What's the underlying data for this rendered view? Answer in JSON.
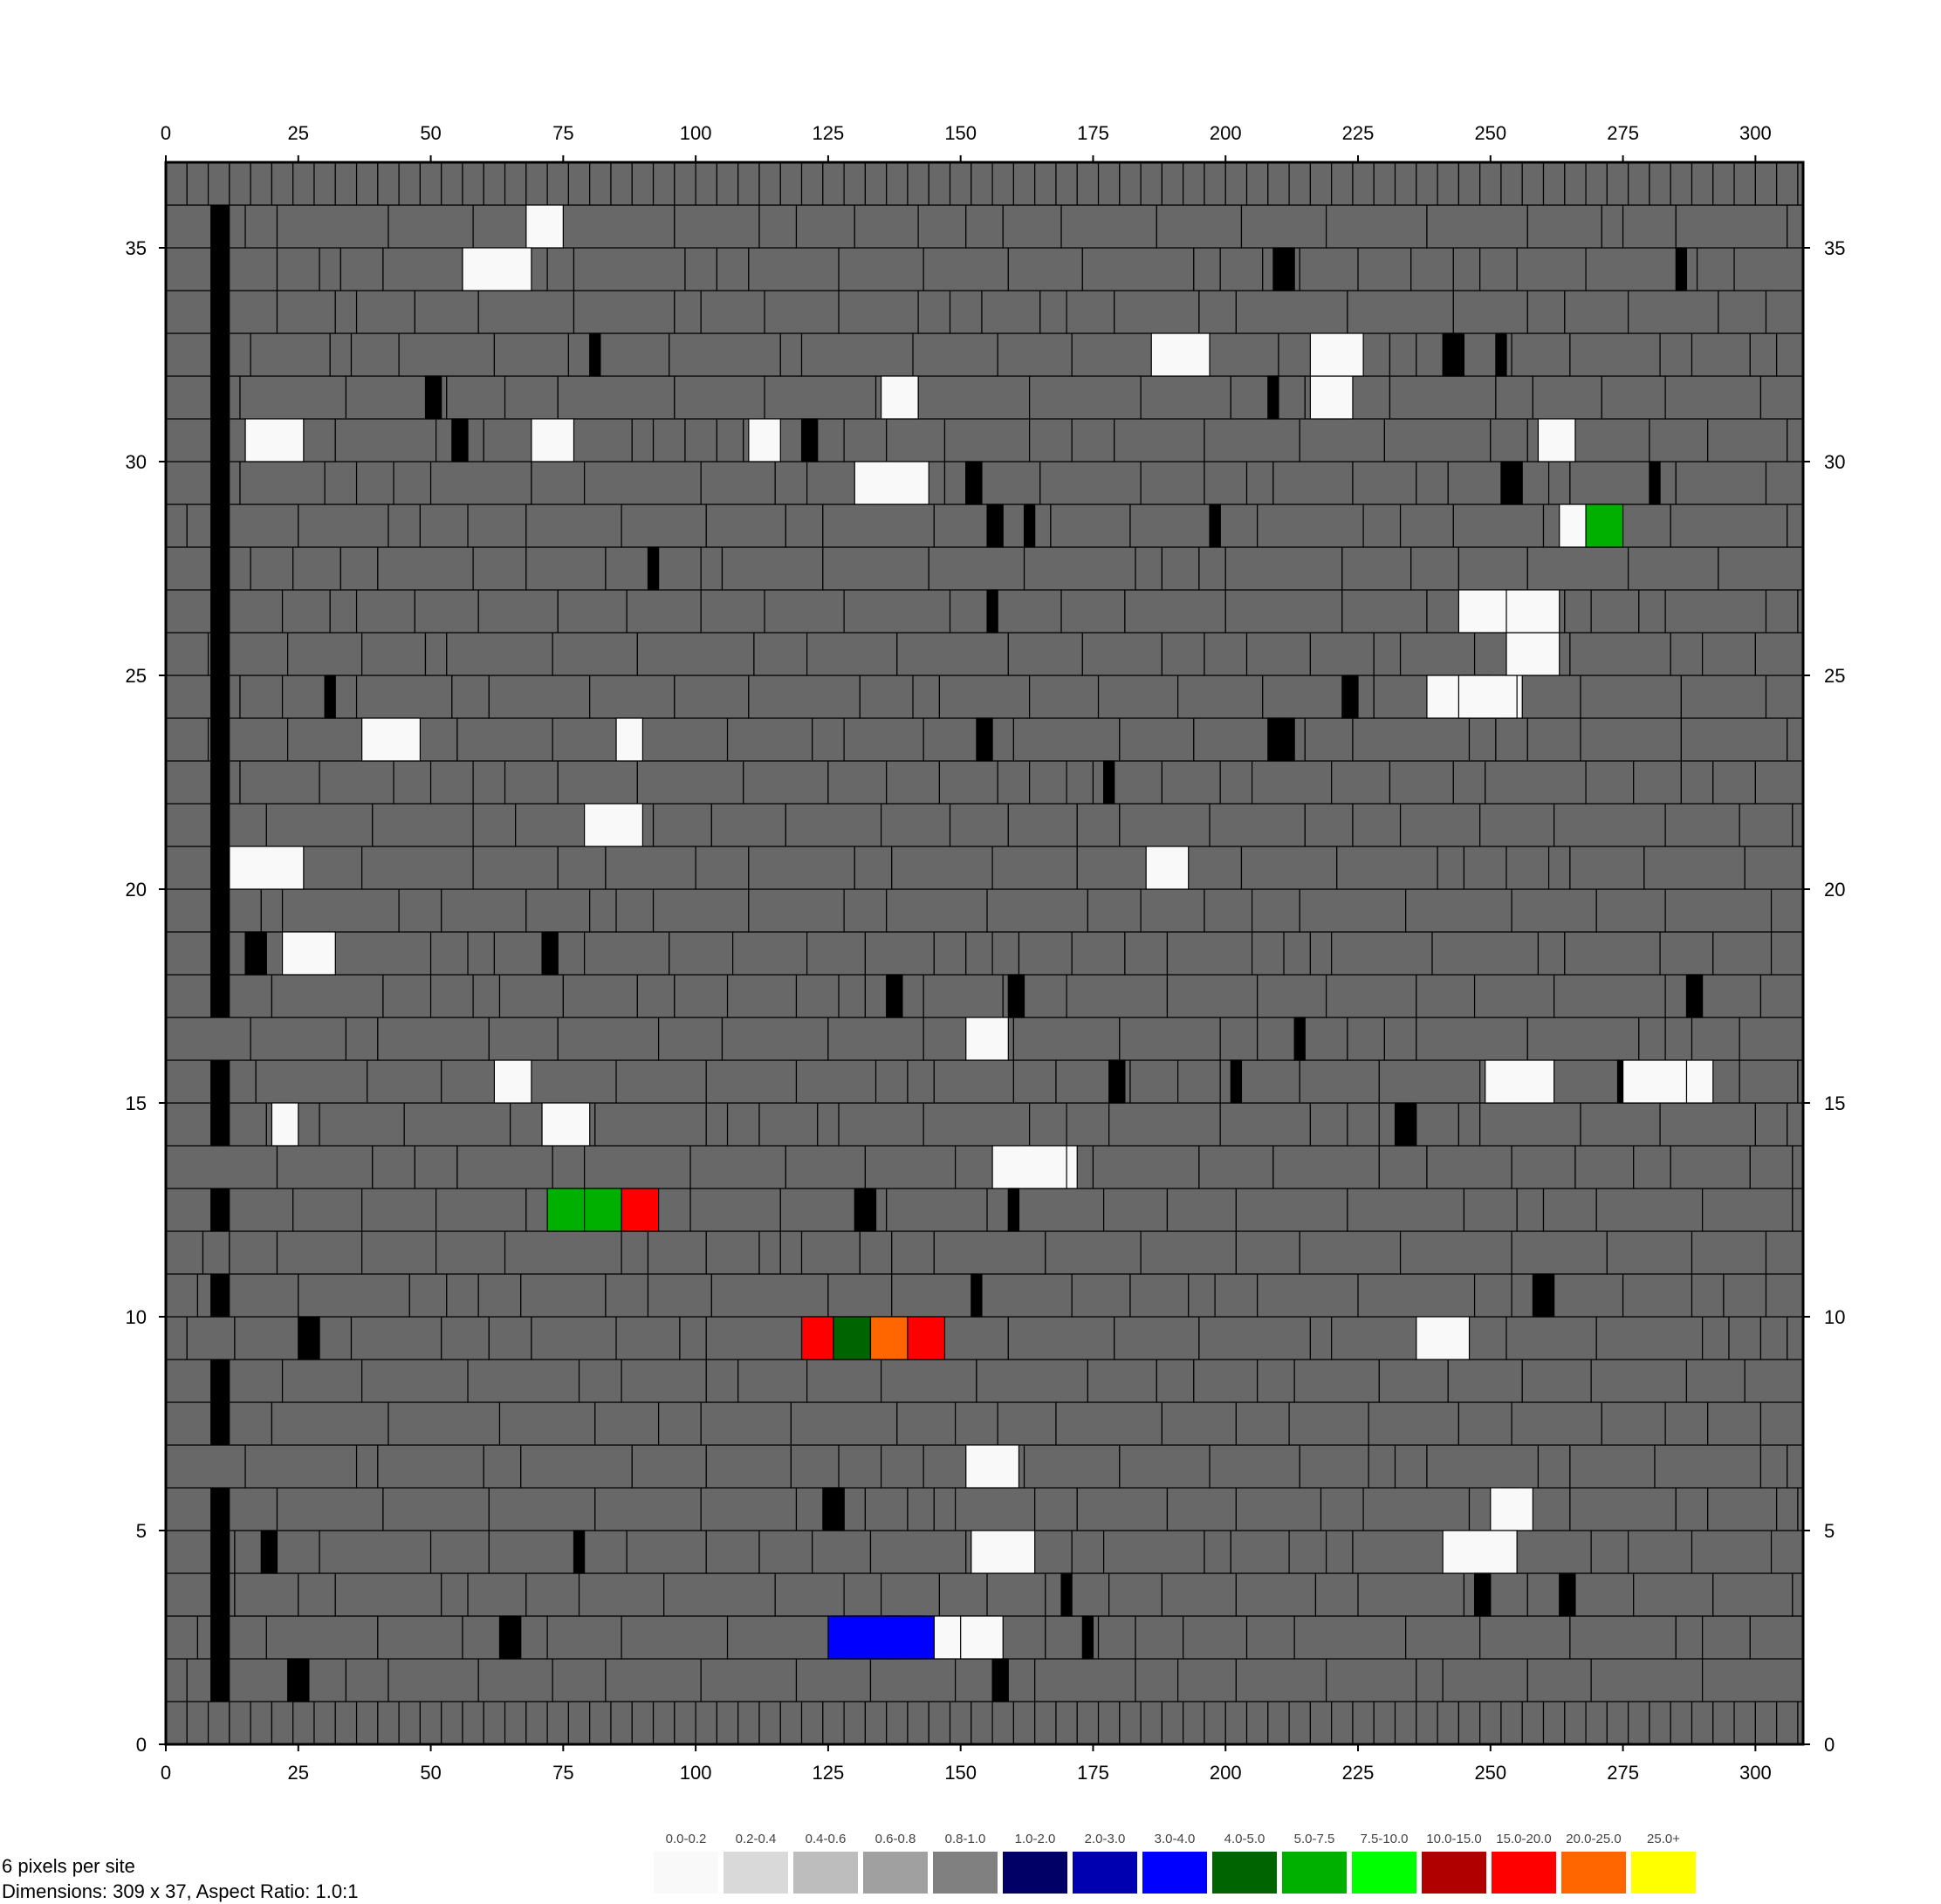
{
  "chart_data": {
    "type": "heatmap",
    "title": "",
    "xlabel": "",
    "ylabel": "",
    "xlim": [
      0,
      309
    ],
    "ylim": [
      0,
      37
    ],
    "x_ticks": [
      0,
      25,
      50,
      75,
      100,
      125,
      150,
      175,
      200,
      225,
      250,
      275,
      300
    ],
    "y_ticks": [
      0,
      5,
      10,
      15,
      20,
      25,
      30,
      35
    ],
    "grid": false,
    "background_color": "#686868",
    "block_border_color": "#000000",
    "legend": {
      "placement": "bottom",
      "bins": [
        {
          "label": "0.0-0.2",
          "color": "#f9f9f9"
        },
        {
          "label": "0.2-0.4",
          "color": "#d9d9d9"
        },
        {
          "label": "0.4-0.6",
          "color": "#bdbdbd"
        },
        {
          "label": "0.6-0.8",
          "color": "#a0a0a0"
        },
        {
          "label": "0.8-1.0",
          "color": "#808080"
        },
        {
          "label": "1.0-2.0",
          "color": "#000066"
        },
        {
          "label": "2.0-3.0",
          "color": "#0000b0"
        },
        {
          "label": "3.0-4.0",
          "color": "#0000ff"
        },
        {
          "label": "4.0-5.0",
          "color": "#006400"
        },
        {
          "label": "5.0-7.5",
          "color": "#00b000"
        },
        {
          "label": "7.5-10.0",
          "color": "#00ff00"
        },
        {
          "label": "10.0-15.0",
          "color": "#b00000"
        },
        {
          "label": "15.0-20.0",
          "color": "#ff0000"
        },
        {
          "label": "20.0-25.0",
          "color": "#ff6600"
        },
        {
          "label": "25.0+",
          "color": "#ffff00"
        }
      ]
    },
    "highlighted_cells": [
      {
        "row": 28,
        "x": [
          263,
          268
        ],
        "bin": "0.0-0.2"
      },
      {
        "row": 28,
        "x": [
          268,
          275
        ],
        "bin": "5.0-7.5"
      },
      {
        "row": 12,
        "x": [
          72,
          79
        ],
        "bin": "5.0-7.5"
      },
      {
        "row": 12,
        "x": [
          79,
          86
        ],
        "bin": "5.0-7.5"
      },
      {
        "row": 12,
        "x": [
          86,
          93
        ],
        "bin": "15.0-20.0"
      },
      {
        "row": 9,
        "x": [
          120,
          126
        ],
        "bin": "15.0-20.0"
      },
      {
        "row": 9,
        "x": [
          126,
          133
        ],
        "bin": "4.0-5.0"
      },
      {
        "row": 9,
        "x": [
          133,
          140
        ],
        "bin": "20.0-25.0"
      },
      {
        "row": 9,
        "x": [
          140,
          147
        ],
        "bin": "15.0-20.0"
      },
      {
        "row": 2,
        "x": [
          125,
          145
        ],
        "bin": "3.0-4.0"
      }
    ]
  },
  "info": {
    "pixels_per_site": "6 pixels per site",
    "dimensions": "Dimensions: 309 x 37, Aspect Ratio: 1.0:1"
  }
}
